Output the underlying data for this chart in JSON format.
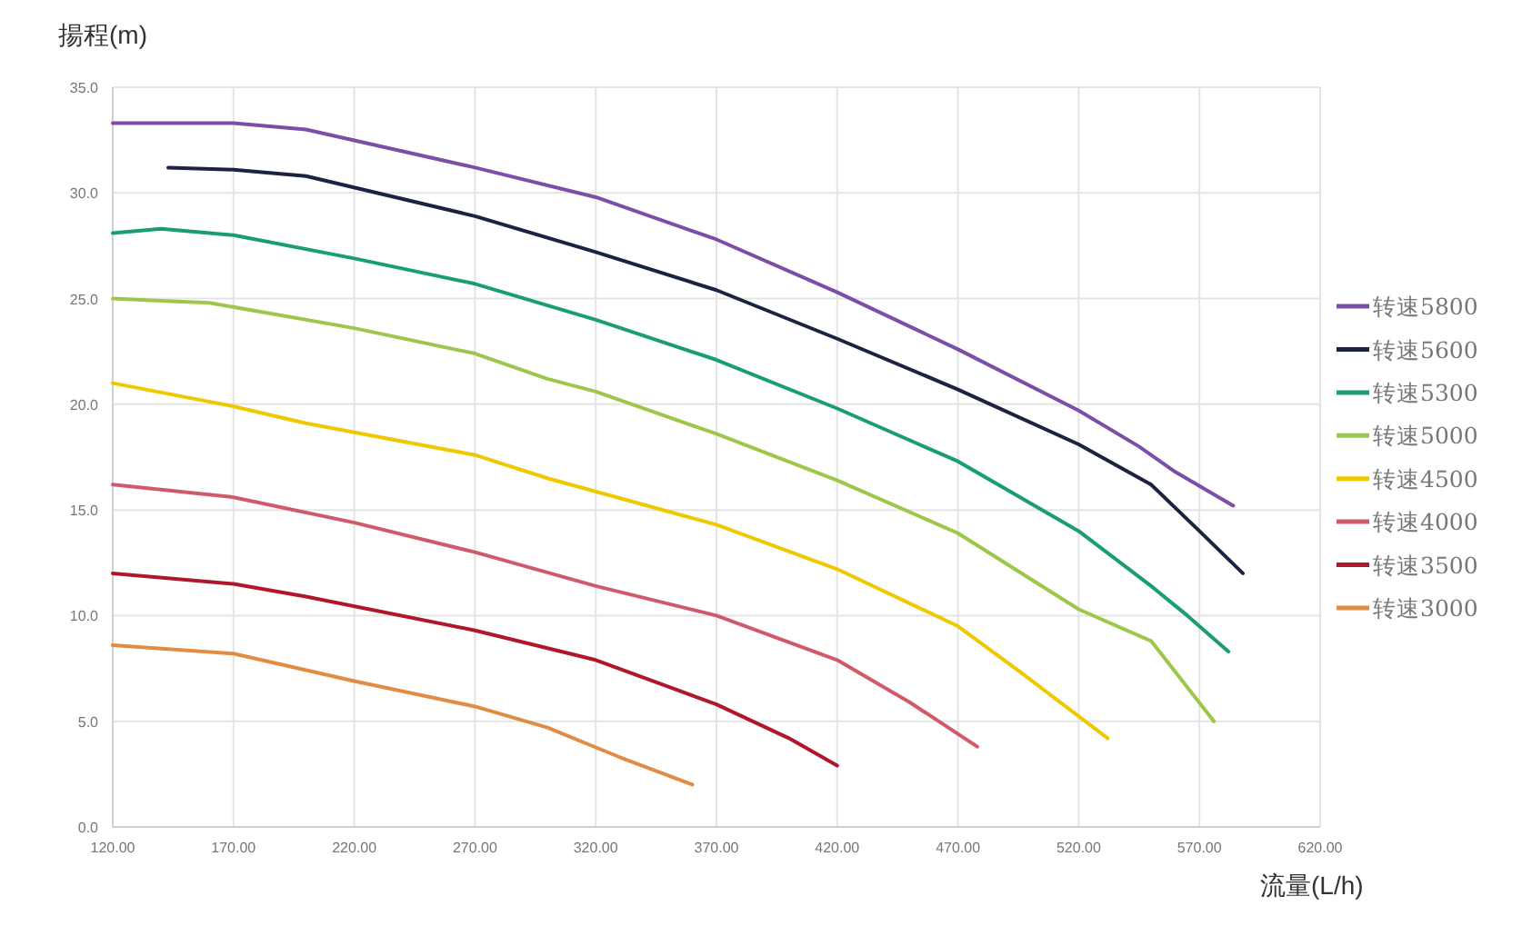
{
  "chart_data": {
    "type": "line",
    "xlabel": "流量(L/h)",
    "ylabel": "揚程(m)",
    "xlim": [
      120,
      620
    ],
    "ylim": [
      0,
      35
    ],
    "xticks": [
      {
        "value": 120,
        "label": "120.00"
      },
      {
        "value": 170,
        "label": "170.00"
      },
      {
        "value": 220,
        "label": "220.00"
      },
      {
        "value": 270,
        "label": "270.00"
      },
      {
        "value": 320,
        "label": "320.00"
      },
      {
        "value": 370,
        "label": "370.00"
      },
      {
        "value": 420,
        "label": "420.00"
      },
      {
        "value": 470,
        "label": "470.00"
      },
      {
        "value": 520,
        "label": "520.00"
      },
      {
        "value": 570,
        "label": "570.00"
      },
      {
        "value": 620,
        "label": "620.00"
      }
    ],
    "yticks": [
      {
        "value": 0,
        "label": "0.0"
      },
      {
        "value": 5,
        "label": "5.0"
      },
      {
        "value": 10,
        "label": "10.0"
      },
      {
        "value": 15,
        "label": "15.0"
      },
      {
        "value": 20,
        "label": "20.0"
      },
      {
        "value": 25,
        "label": "25.0"
      },
      {
        "value": 30,
        "label": "30.0"
      },
      {
        "value": 35,
        "label": "35.0"
      }
    ],
    "grid": true,
    "legend": "right",
    "marker": "none",
    "line_style": "solid",
    "series": [
      {
        "name": "转速5800",
        "color": "#7b4fa8",
        "x": [
          120,
          170,
          200,
          270,
          320,
          370,
          420,
          470,
          520,
          545,
          560,
          584
        ],
        "values": [
          33.3,
          33.3,
          33.0,
          31.2,
          29.8,
          27.8,
          25.3,
          22.6,
          19.7,
          18.0,
          16.8,
          15.2
        ]
      },
      {
        "name": "转速5600",
        "color": "#1c2341",
        "x": [
          143,
          170,
          200,
          270,
          320,
          370,
          420,
          470,
          520,
          550,
          570,
          588
        ],
        "values": [
          31.2,
          31.1,
          30.8,
          28.9,
          27.2,
          25.4,
          23.1,
          20.7,
          18.1,
          16.2,
          14.0,
          12.0
        ]
      },
      {
        "name": "转速5300",
        "color": "#1a9e6e",
        "x": [
          120,
          140,
          170,
          220,
          270,
          320,
          370,
          420,
          470,
          520,
          550,
          565,
          582
        ],
        "values": [
          28.1,
          28.3,
          28.0,
          26.9,
          25.7,
          24.0,
          22.1,
          19.8,
          17.3,
          14.0,
          11.4,
          10.0,
          8.3
        ]
      },
      {
        "name": "转速5000",
        "color": "#9dc74a",
        "x": [
          120,
          140,
          160,
          220,
          270,
          300,
          320,
          370,
          420,
          470,
          520,
          550,
          576
        ],
        "values": [
          25.0,
          24.9,
          24.8,
          23.6,
          22.4,
          21.2,
          20.6,
          18.6,
          16.4,
          13.9,
          10.3,
          8.8,
          5.0
        ]
      },
      {
        "name": "转速4500",
        "color": "#f0c800",
        "x": [
          120,
          170,
          200,
          270,
          300,
          370,
          420,
          470,
          495,
          532
        ],
        "values": [
          21.0,
          19.9,
          19.1,
          17.6,
          16.5,
          14.3,
          12.2,
          9.5,
          7.4,
          4.2
        ]
      },
      {
        "name": "转速4000",
        "color": "#d05a6a",
        "x": [
          120,
          170,
          220,
          270,
          320,
          370,
          420,
          450,
          478
        ],
        "values": [
          16.2,
          15.6,
          14.4,
          13.0,
          11.4,
          10.0,
          7.9,
          5.9,
          3.8
        ]
      },
      {
        "name": "转速3500",
        "color": "#b0162c",
        "x": [
          120,
          170,
          200,
          270,
          320,
          370,
          400,
          420
        ],
        "values": [
          12.0,
          11.5,
          10.9,
          9.3,
          7.9,
          5.8,
          4.2,
          2.9
        ]
      },
      {
        "name": "转速3000",
        "color": "#e08c44",
        "x": [
          120,
          170,
          220,
          270,
          300,
          330,
          360
        ],
        "values": [
          8.6,
          8.2,
          6.9,
          5.7,
          4.7,
          3.3,
          2.0
        ]
      }
    ]
  }
}
